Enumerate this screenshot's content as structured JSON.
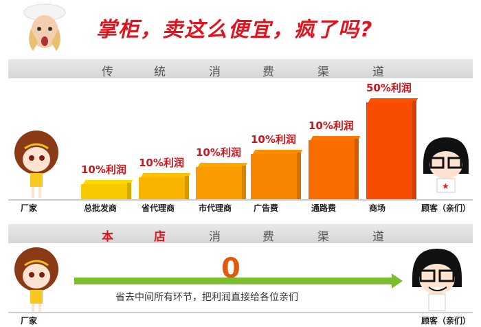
{
  "headline": "掌柜，卖这么便宜，疯了吗?",
  "traditional": {
    "band": [
      "传",
      "统",
      "消",
      "费",
      "渠",
      "道"
    ],
    "start_label": "厂家",
    "end_label": "顾客（亲们）",
    "stages": [
      {
        "label": "总批发商",
        "profit": "10%利润",
        "color": "#f8c800"
      },
      {
        "label": "省代理商",
        "profit": "10%利润",
        "color": "#f8b400"
      },
      {
        "label": "市代理商",
        "profit": "10%利润",
        "color": "#f89c00"
      },
      {
        "label": "广告费",
        "profit": "10%利润",
        "color": "#f88400"
      },
      {
        "label": "通路费",
        "profit": "10%利润",
        "color": "#f86c00"
      },
      {
        "label": "商场",
        "profit": "50%利润",
        "color": "#f84c00"
      }
    ]
  },
  "store": {
    "band": [
      "本",
      "店",
      "消",
      "费",
      "渠",
      "道"
    ],
    "zero": "0",
    "note": "省去中间所有环节，把利润直接给各位亲们",
    "start_label": "厂家",
    "end_label": "顾客（亲们）",
    "arrow_color": "#7cbd2c"
  }
}
